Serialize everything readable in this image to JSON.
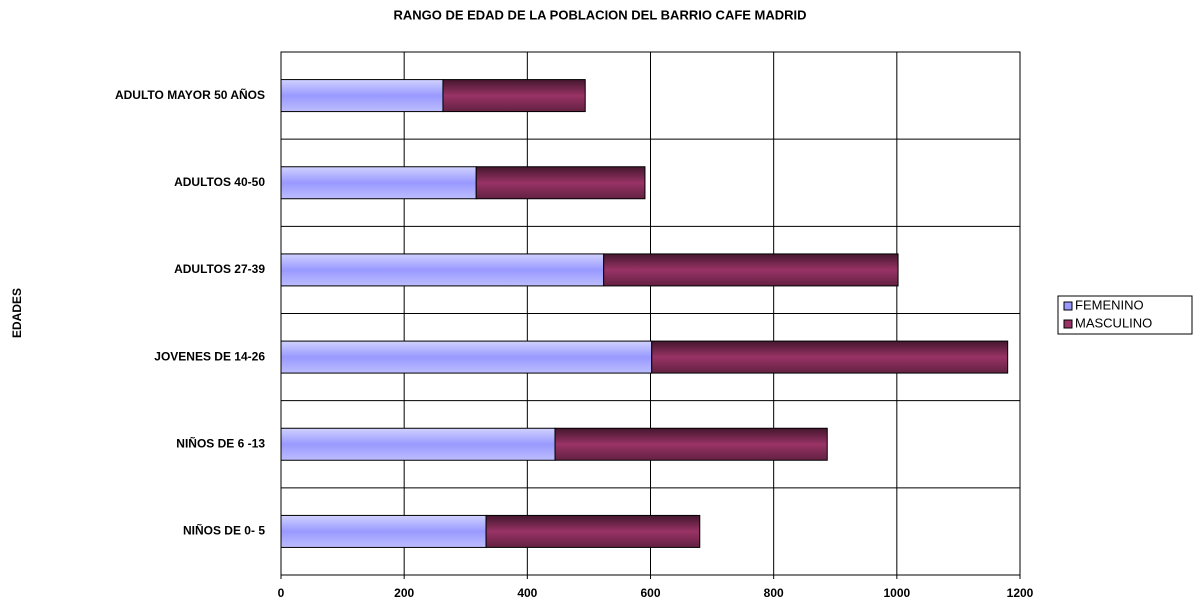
{
  "chart_data": {
    "type": "bar",
    "orientation": "horizontal",
    "stacked": true,
    "title": "RANGO DE EDAD DE LA POBLACION DEL BARRIO CAFE MADRID",
    "y_label": "EDADES",
    "categories": [
      "ADULTO MAYOR 50 AÑOS",
      "ADULTOS 40-50",
      "ADULTOS 27-39",
      "JOVENES DE 14-26",
      "NIÑOS DE 6 -13",
      "NIÑOS DE 0- 5"
    ],
    "series": [
      {
        "name": "FEMENINO",
        "color": "#9999ff",
        "values": [
          263,
          317,
          524,
          602,
          445,
          333
        ]
      },
      {
        "name": "MASCULINO",
        "color": "#993366",
        "values": [
          231,
          274,
          478,
          578,
          442,
          347
        ]
      }
    ],
    "xlim": [
      0,
      1200
    ],
    "xticks": [
      0,
      200,
      400,
      600,
      800,
      1000,
      1200
    ],
    "grid": true,
    "legend": "right"
  }
}
